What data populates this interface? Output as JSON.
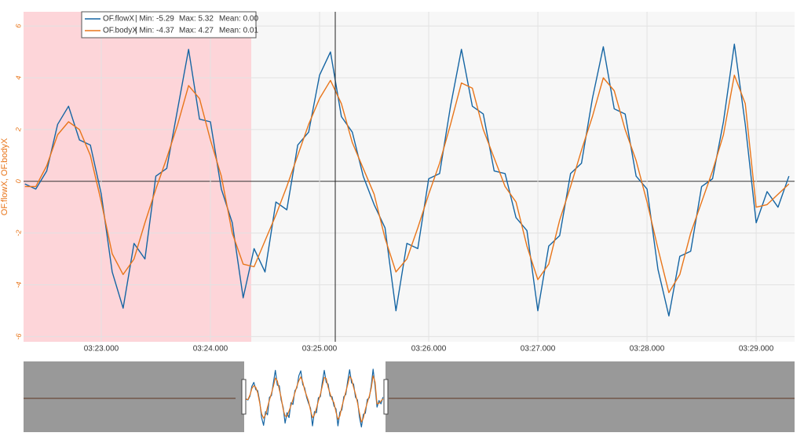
{
  "chart_data": {
    "type": "line",
    "y_label": "OF.flowX, OF.bodyX",
    "x": [
      202.3,
      202.4,
      202.5,
      202.6,
      202.7,
      202.8,
      202.9,
      203.0,
      203.1,
      203.2,
      203.3,
      203.4,
      203.5,
      203.6,
      203.7,
      203.8,
      203.9,
      204.0,
      204.1,
      204.2,
      204.3,
      204.4,
      204.5,
      204.6,
      204.7,
      204.8,
      204.9,
      205.0,
      205.1,
      205.2,
      205.3,
      205.4,
      205.5,
      205.6,
      205.7,
      205.8,
      205.9,
      206.0,
      206.1,
      206.2,
      206.3,
      206.4,
      206.5,
      206.6,
      206.7,
      206.8,
      206.9,
      207.0,
      207.1,
      207.2,
      207.3,
      207.4,
      207.5,
      207.6,
      207.7,
      207.8,
      207.9,
      208.0,
      208.1,
      208.2,
      208.3,
      208.4,
      208.5,
      208.6,
      208.7,
      208.8,
      208.9,
      209.0,
      209.1,
      209.2,
      209.3
    ],
    "series": [
      {
        "name": "OF.flowX",
        "stats": [
          "| Min: -5.29",
          "Max: 5.32",
          "Mean: 0.00"
        ],
        "color": "#1565a3",
        "values": [
          -0.1,
          -0.3,
          0.4,
          2.2,
          2.9,
          1.6,
          1.4,
          -0.5,
          -3.5,
          -4.9,
          -2.4,
          -3.0,
          0.2,
          0.5,
          2.8,
          5.1,
          2.4,
          2.3,
          -0.3,
          -1.6,
          -4.5,
          -2.6,
          -3.5,
          -0.8,
          -1.1,
          1.4,
          1.9,
          4.1,
          5.0,
          2.5,
          1.9,
          0.2,
          -0.9,
          -1.8,
          -5.0,
          -2.4,
          -2.6,
          0.1,
          0.3,
          2.9,
          5.1,
          2.9,
          2.6,
          0.4,
          0.3,
          -1.4,
          -1.9,
          -5.0,
          -2.5,
          -2.1,
          0.3,
          0.7,
          3.2,
          5.2,
          2.8,
          2.6,
          0.2,
          -0.3,
          -3.4,
          -5.2,
          -2.9,
          -2.7,
          -0.2,
          0.1,
          2.3,
          5.3,
          2.2,
          -1.6,
          -0.4,
          -1.0,
          0.2
        ]
      },
      {
        "name": "OF.bodyX",
        "stats": [
          "| Min: -4.37",
          "Max: 4.27",
          "Mean: 0.01"
        ],
        "color": "#e8751a",
        "values": [
          -0.2,
          -0.2,
          0.6,
          1.8,
          2.3,
          2.0,
          1.0,
          -0.8,
          -2.8,
          -3.6,
          -3.0,
          -1.6,
          -0.3,
          0.9,
          2.2,
          3.7,
          3.2,
          1.6,
          0.2,
          -2.0,
          -3.2,
          -3.3,
          -2.3,
          -1.3,
          -0.2,
          1.0,
          2.2,
          3.2,
          3.9,
          3.0,
          1.5,
          0.5,
          -0.5,
          -2.2,
          -3.5,
          -3.0,
          -1.8,
          -0.5,
          0.7,
          2.2,
          3.8,
          3.6,
          2.0,
          0.9,
          -0.2,
          -0.8,
          -2.5,
          -3.8,
          -3.2,
          -1.5,
          -0.2,
          1.2,
          2.5,
          4.0,
          3.5,
          2.0,
          0.8,
          -0.8,
          -2.6,
          -4.3,
          -3.6,
          -2.0,
          -0.8,
          0.4,
          1.8,
          4.1,
          3.0,
          -1.0,
          -0.9,
          -0.5,
          -0.1
        ]
      }
    ],
    "xlim": [
      202.288,
      209.352
    ],
    "xticks": [
      {
        "value": 203,
        "label": "03:23.000"
      },
      {
        "value": 204,
        "label": "03:24.000"
      },
      {
        "value": 205,
        "label": "03:25.000"
      },
      {
        "value": 206,
        "label": "03:26.000"
      },
      {
        "value": 207,
        "label": "03:27.000"
      },
      {
        "value": 208,
        "label": "03:28.000"
      },
      {
        "value": 209,
        "label": "03:29.000"
      }
    ],
    "ylim": [
      -6.2,
      6.55
    ],
    "yticks": [
      -6,
      -4,
      -2,
      0,
      2,
      4,
      6
    ],
    "grid": true
  }
}
